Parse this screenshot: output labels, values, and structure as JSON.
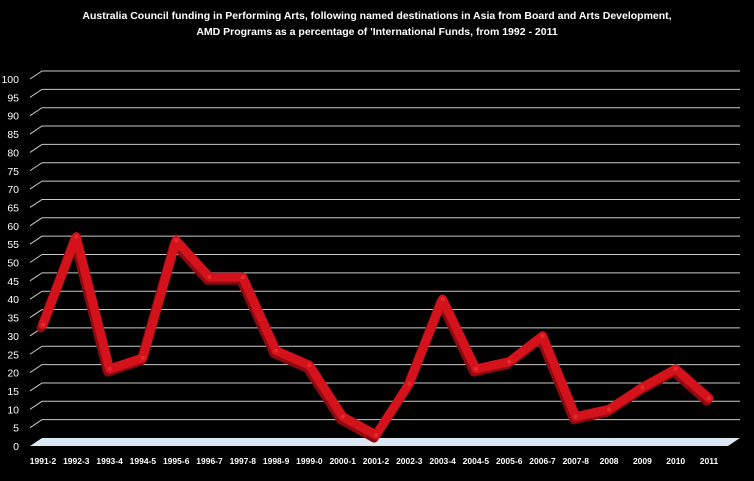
{
  "chart_data": {
    "type": "line",
    "title": [
      "Australia Council funding in Performing Arts, following named destinations in Asia from Board and Arts Development,",
      "AMD Programs as a percentage of 'International Funds, from 1992 - 2011"
    ],
    "xlabel": "",
    "ylabel": "",
    "ylim": [
      0,
      100
    ],
    "yticks": [
      "0",
      "5",
      "10",
      "15",
      "20",
      "25",
      "30",
      "35",
      "40",
      "45",
      "50",
      "55",
      "60",
      "65",
      "70",
      "75",
      "80",
      "85",
      "90",
      "95",
      "100"
    ],
    "categories": [
      "1991-2",
      "1992-3",
      "1993-4",
      "1994-5",
      "1995-6",
      "1996-7",
      "1997-8",
      "1998-9",
      "1999-0",
      "2000-1",
      "2001-2",
      "2002-3",
      "2003-4",
      "2004-5",
      "2005-6",
      "2006-7",
      "2007-8",
      "2008",
      "2009",
      "2010",
      "2011"
    ],
    "series": [
      {
        "values": [
          33,
          57,
          21,
          24,
          56,
          46,
          46,
          26,
          22,
          8,
          3,
          17,
          40,
          21,
          23,
          30,
          8,
          10,
          16,
          21,
          13
        ]
      }
    ],
    "grid": true,
    "legend": "none",
    "colors": {
      "background": "#000000",
      "line": "#d4121c",
      "line_shade": "#8e0a10",
      "grid": "#c9c9c9",
      "text": "#ffffff",
      "floor": "#dde8f2"
    }
  }
}
